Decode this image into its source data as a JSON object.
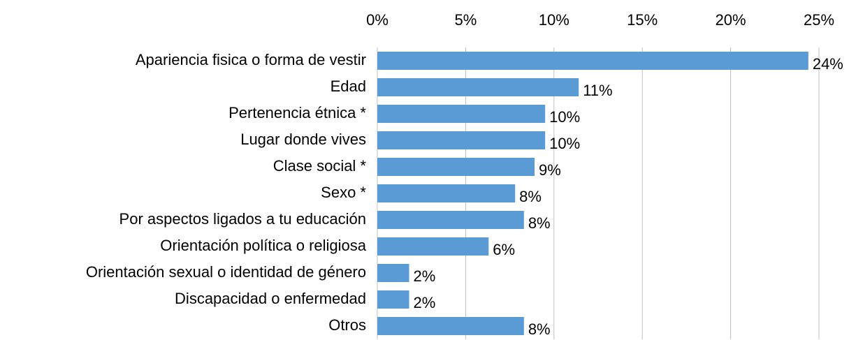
{
  "chart_data": {
    "type": "hbar",
    "categories": [
      "Apariencia fisica o forma de vestir",
      "Edad",
      "Pertenencia étnica *",
      "Lugar donde vives",
      "Clase social *",
      "Sexo *",
      "Por aspectos ligados a tu educación",
      "Orientación política o religiosa",
      "Orientación sexual o identidad de género",
      "Discapacidad o enfermedad",
      "Otros"
    ],
    "values": [
      24.4,
      11.4,
      9.5,
      9.5,
      8.9,
      7.8,
      8.3,
      6.3,
      1.8,
      1.8,
      8.3
    ],
    "value_labels": [
      "24%",
      "11%",
      "10%",
      "10%",
      "9%",
      "8%",
      "8%",
      "6%",
      "2%",
      "2%",
      "8%"
    ],
    "color": "#5b9bd5",
    "xlim": [
      0,
      25
    ],
    "xticks": [
      {
        "value": 0,
        "label": "0%"
      },
      {
        "value": 5,
        "label": "5%"
      },
      {
        "value": 10,
        "label": "10%"
      },
      {
        "value": 15,
        "label": "15%"
      },
      {
        "value": 20,
        "label": "20%"
      },
      {
        "value": 25,
        "label": "25%"
      }
    ],
    "grid": true
  }
}
